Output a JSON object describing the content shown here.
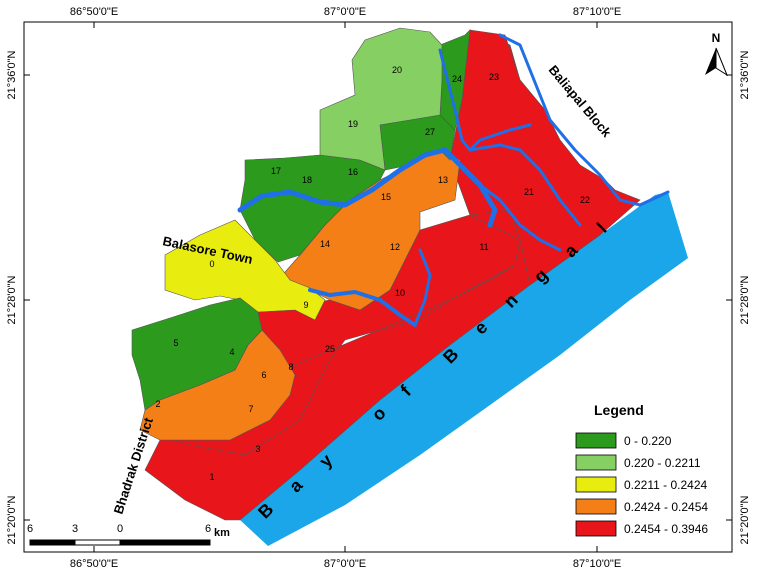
{
  "coords": {
    "top": [
      "86°50'0\"E",
      "87°0'0\"E",
      "87°10'0\"E"
    ],
    "bottom": [
      "86°50'0\"E",
      "87°0'0\"E",
      "87°10'0\"E"
    ],
    "left": [
      "21°36'0\"N",
      "21°28'0\"N",
      "21°20'0\"N"
    ],
    "right": [
      "21°36'0\"N",
      "21°28'0\"N",
      "21°20'0\"N"
    ]
  },
  "places": {
    "town": "Balasore Town",
    "block": "Baliapal Block",
    "district": "Bhadrak District",
    "bay_letters": [
      "B",
      "a",
      "y",
      "o",
      "f",
      "B",
      "e",
      "n",
      "g",
      "a",
      "l"
    ]
  },
  "north": "N",
  "scale": {
    "ticks": [
      "6",
      "3",
      "0",
      "6"
    ],
    "unit": "km"
  },
  "legend": {
    "title": "Legend",
    "classes": [
      {
        "label": "0 - 0.220",
        "color": "#2b9a1d"
      },
      {
        "label": "0.220 - 0.2211",
        "color": "#86cf62"
      },
      {
        "label": "0.2211 - 0.2424",
        "color": "#e9ec0f"
      },
      {
        "label": "0.2424 - 0.2454",
        "color": "#f57f17"
      },
      {
        "label": "0.2454 - 0.3946",
        "color": "#e8151b"
      }
    ]
  },
  "colors": {
    "sea": "#1aa6e8",
    "river": "#1f6fe6"
  },
  "zones": [
    {
      "id": "0",
      "cls": 2
    },
    {
      "id": "1",
      "cls": 4
    },
    {
      "id": "2",
      "cls": 3
    },
    {
      "id": "3",
      "cls": 4
    },
    {
      "id": "4",
      "cls": 0
    },
    {
      "id": "5",
      "cls": 0
    },
    {
      "id": "6",
      "cls": 3
    },
    {
      "id": "7",
      "cls": 3
    },
    {
      "id": "8",
      "cls": 4
    },
    {
      "id": "9",
      "cls": 3
    },
    {
      "id": "10",
      "cls": 4
    },
    {
      "id": "11",
      "cls": 4
    },
    {
      "id": "12",
      "cls": 3
    },
    {
      "id": "13",
      "cls": 3
    },
    {
      "id": "14",
      "cls": 3
    },
    {
      "id": "15",
      "cls": 3
    },
    {
      "id": "16",
      "cls": 0
    },
    {
      "id": "17",
      "cls": 0
    },
    {
      "id": "18",
      "cls": 0
    },
    {
      "id": "19",
      "cls": 1
    },
    {
      "id": "20",
      "cls": 1
    },
    {
      "id": "21",
      "cls": 4
    },
    {
      "id": "22",
      "cls": 4
    },
    {
      "id": "23",
      "cls": 4
    },
    {
      "id": "24",
      "cls": 0
    },
    {
      "id": "25",
      "cls": 4
    },
    {
      "id": "27",
      "cls": 0
    }
  ]
}
